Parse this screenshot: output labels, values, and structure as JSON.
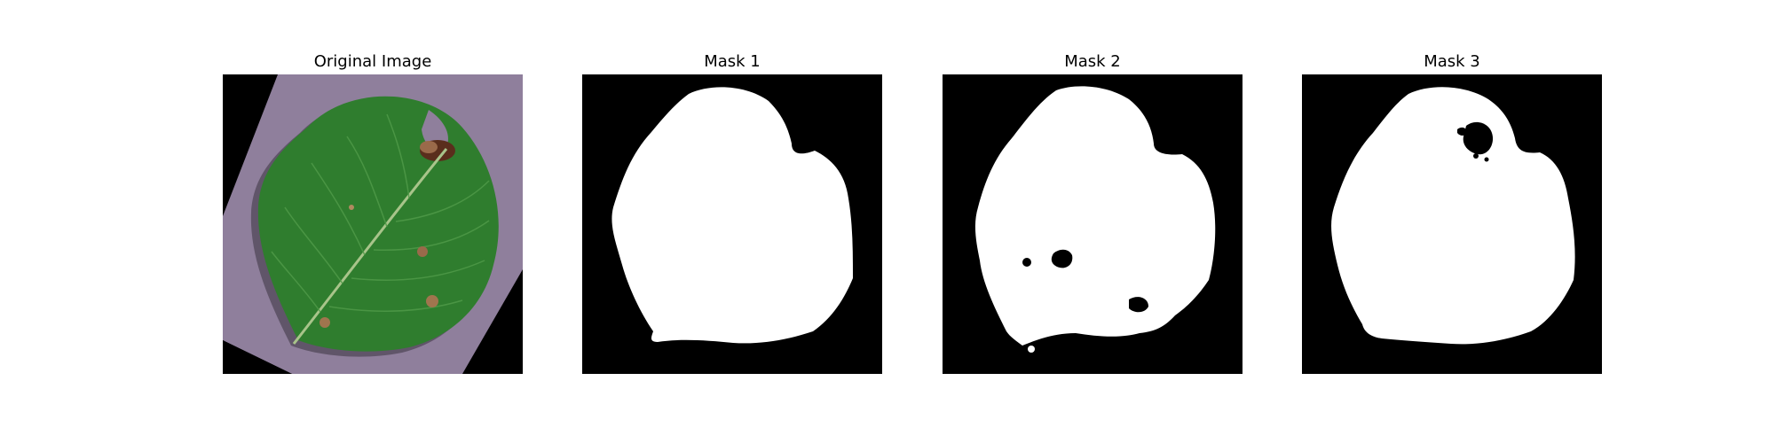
{
  "figure": {
    "panels": [
      {
        "title": "Original Image",
        "kind": "photo",
        "subject": "leaf-photo"
      },
      {
        "title": "Mask 1",
        "kind": "mask",
        "subject": "leaf-mask"
      },
      {
        "title": "Mask 2",
        "kind": "mask",
        "subject": "leaf-mask"
      },
      {
        "title": "Mask 3",
        "kind": "mask",
        "subject": "leaf-mask"
      }
    ],
    "colors": {
      "background": "#000000",
      "mask_foreground": "#ffffff",
      "paper": "#8f7f9c",
      "leaf": "#2f7d2e",
      "leaf_dark": "#1f5c20",
      "lesion": "#8a5a3a"
    }
  }
}
